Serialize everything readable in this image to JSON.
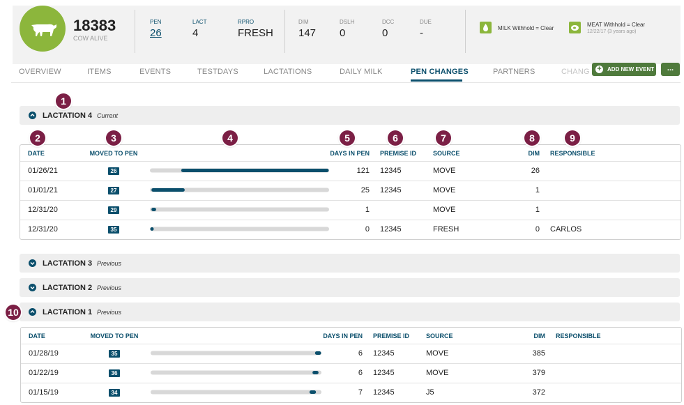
{
  "header": {
    "cow_id": "18383",
    "status": "COW ALIVE",
    "fields": [
      {
        "label": "PEN",
        "value": "26"
      },
      {
        "label": "LACT",
        "value": "4"
      },
      {
        "label": "RPRO",
        "value": "FRESH"
      }
    ],
    "stats": [
      {
        "label": "DIM",
        "value": "147"
      },
      {
        "label": "DSLH",
        "value": "0"
      },
      {
        "label": "DCC",
        "value": "0"
      },
      {
        "label": "DUE",
        "value": "-"
      }
    ],
    "milk_withhold": "MILK Withhold = Clear",
    "meat_withhold": "MEAT Withhold = Clear",
    "meat_date": "12/22/17 (3 years ago)"
  },
  "tabs": [
    "OVERVIEW",
    "ITEMS",
    "EVENTS",
    "TESTDAYS",
    "LACTATIONS",
    "DAILY MILK",
    "PEN CHANGES",
    "PARTNERS",
    "CHANGES"
  ],
  "active_tab": 6,
  "buttons": {
    "add": "ADD NEW EVENT",
    "more": "..."
  },
  "callouts": [
    1,
    2,
    3,
    4,
    5,
    6,
    7,
    8,
    9,
    10
  ],
  "columns": [
    "DATE",
    "MOVED TO PEN",
    "DAYS IN PEN",
    "PREMISE ID",
    "SOURCE",
    "DIM",
    "RESPONSIBLE"
  ],
  "lactations": [
    {
      "title": "LACTATION 4",
      "tag": "Current",
      "open": true,
      "rows": [
        {
          "date": "01/26/21",
          "pen": 26,
          "days": 121,
          "premise": 12345,
          "source": "MOVE",
          "dim": 26
        },
        {
          "date": "01/01/21",
          "pen": 27,
          "days": 25,
          "premise": 12345,
          "source": "MOVE",
          "dim": 1
        },
        {
          "date": "12/31/20",
          "pen": 29,
          "days": 1,
          "source": "MOVE",
          "dim": 1
        },
        {
          "date": "12/31/20",
          "pen": 35,
          "days": 0,
          "premise": 12345,
          "source": "FRESH",
          "dim": 0,
          "responsible": "CARLOS"
        }
      ]
    },
    {
      "title": "LACTATION 3",
      "tag": "Previous",
      "open": false
    },
    {
      "title": "LACTATION 2",
      "tag": "Previous",
      "open": false
    },
    {
      "title": "LACTATION 1",
      "tag": "Previous",
      "open": true,
      "rows": [
        {
          "date": "01/28/19",
          "pen": 35,
          "days": 6,
          "premise": 12345,
          "source": "MOVE",
          "dim": 385
        },
        {
          "date": "01/22/19",
          "pen": 36,
          "days": 6,
          "premise": 12345,
          "source": "MOVE",
          "dim": 379
        },
        {
          "date": "01/15/19",
          "pen": 34,
          "days": 7,
          "premise": 12345,
          "source": "J5",
          "dim": 372
        }
      ]
    }
  ]
}
